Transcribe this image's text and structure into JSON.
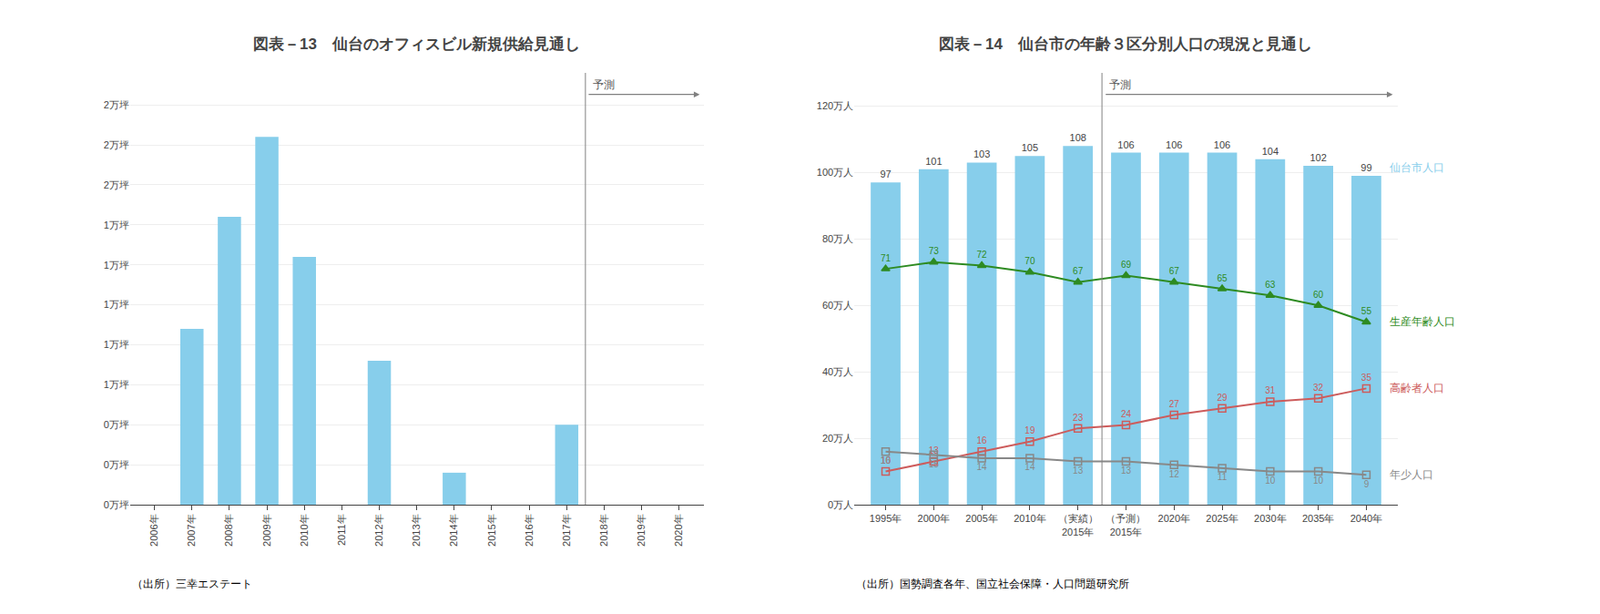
{
  "chart_data": [
    {
      "type": "bar",
      "title": "図表－13　仙台のオフィスビル新規供給見通し",
      "categories": [
        "2006年",
        "2007年",
        "2008年",
        "2009年",
        "2010年",
        "2011年",
        "2012年",
        "2013年",
        "2014年",
        "2015年",
        "2016年",
        "2017年",
        "2018年",
        "2019年",
        "2020年"
      ],
      "values": [
        0,
        11000,
        18000,
        23000,
        15500,
        0,
        9000,
        0,
        2000,
        0,
        0,
        5000,
        0,
        0,
        0
      ],
      "color": "#87CEEB",
      "ylim": [
        0,
        27000
      ],
      "yticks": [
        {
          "value": 0,
          "label": "0万坪"
        },
        {
          "value": 2500,
          "label": "0万坪"
        },
        {
          "value": 5000,
          "label": "0万坪"
        },
        {
          "value": 7500,
          "label": "1万坪"
        },
        {
          "value": 10000,
          "label": "1万坪"
        },
        {
          "value": 12500,
          "label": "1万坪"
        },
        {
          "value": 15000,
          "label": "1万坪"
        },
        {
          "value": 17500,
          "label": "1万坪"
        },
        {
          "value": 20000,
          "label": "2万坪"
        },
        {
          "value": 22500,
          "label": "2万坪"
        },
        {
          "value": 25000,
          "label": "2万坪"
        }
      ],
      "grid": true,
      "annotations": [
        {
          "text": "予測",
          "from": "2018年"
        },
        {
          "text": "（出所）三幸エステート"
        }
      ]
    },
    {
      "type": "bar",
      "title": "図表－14　仙台市の年齢３区分別人口の現況と見通し",
      "categories": [
        "1995年",
        "2000年",
        "2005年",
        "2010年",
        "（実績）\n2015年",
        "（予測）\n2015年",
        "2020年",
        "2025年",
        "2030年",
        "2035年",
        "2040年"
      ],
      "series": [
        {
          "name": "仙台市人口",
          "type": "bar",
          "color": "#87CEEB",
          "values": [
            97,
            101,
            103,
            105,
            108,
            106,
            106,
            106,
            104,
            102,
            99
          ]
        },
        {
          "name": "生産年齢人口",
          "type": "line",
          "color": "#2E8B22",
          "marker": "triangle-up",
          "values": [
            71,
            73,
            72,
            70,
            67,
            69,
            67,
            65,
            63,
            60,
            55
          ]
        },
        {
          "name": "高齢者人口",
          "type": "line",
          "color": "#CD5C5C",
          "marker": "square-open",
          "values": [
            10,
            13,
            16,
            19,
            23,
            24,
            27,
            29,
            31,
            32,
            35
          ]
        },
        {
          "name": "年少人口",
          "type": "line",
          "color": "#888888",
          "marker": "square-open",
          "values": [
            16,
            15,
            14,
            14,
            13,
            13,
            12,
            11,
            10,
            10,
            9
          ]
        }
      ],
      "ylim": [
        0,
        130
      ],
      "yticks": [
        {
          "value": 0,
          "label": "0万人"
        },
        {
          "value": 20,
          "label": "20万人"
        },
        {
          "value": 40,
          "label": "40万人"
        },
        {
          "value": 60,
          "label": "60万人"
        },
        {
          "value": 80,
          "label": "80万人"
        },
        {
          "value": 100,
          "label": "100万人"
        },
        {
          "value": 120,
          "label": "120万人"
        }
      ],
      "grid": true,
      "data_labels": true,
      "annotations": [
        {
          "text": "予測",
          "from": "（予測）\n2015年"
        },
        {
          "text": "（出所）国勢調査各年、国立社会保障・人口問題研究所"
        }
      ]
    }
  ]
}
